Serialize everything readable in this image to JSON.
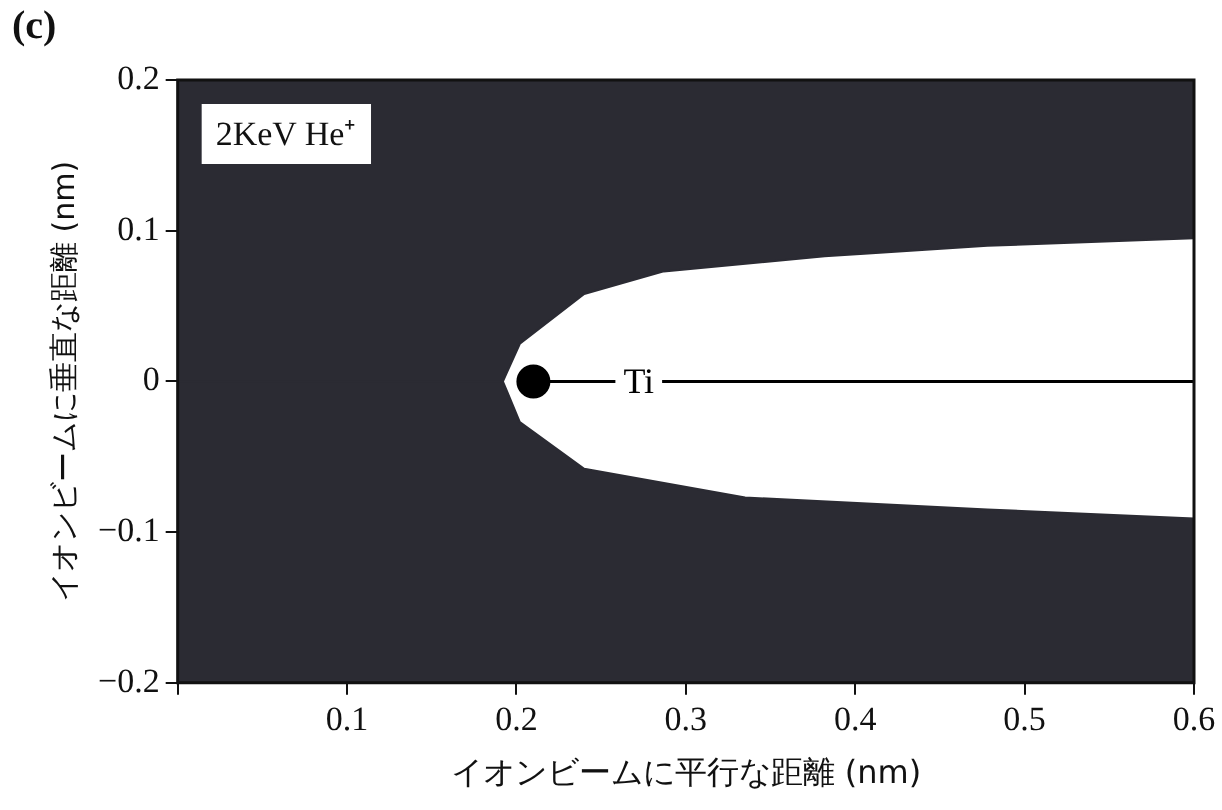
{
  "chart_data": {
    "type": "area",
    "xlabel": "イオンビームに平行な距離 (nm)",
    "ylabel": "イオンビームに垂直な距離 (nm)",
    "annotations": [
      "(c)",
      "2KeV He⁺"
    ],
    "xlim": [
      0,
      0.6
    ],
    "xticks": [
      {
        "value": 0,
        "label": null
      },
      0.1,
      0.2,
      0.3,
      0.4,
      0.5,
      0.6
    ],
    "ylim": [
      -0.2,
      0.2
    ],
    "yticks": [
      {
        "value": -0.2,
        "label": "−0.2"
      },
      {
        "value": -0.1,
        "label": "−0.1"
      },
      0,
      0.1,
      0.2
    ],
    "series": [
      {
        "type": "area",
        "color": "#2b2b33",
        "x": [
          0,
          0,
          0.192,
          0.202,
          0.24,
          0.287,
          0.382,
          0.478,
          0.6,
          0.6
        ],
        "values": [
          0.2,
          0,
          0,
          0.025,
          0.058,
          0.073,
          0.083,
          0.09,
          0.095,
          0.2
        ]
      },
      {
        "type": "area",
        "color": "#2b2b33",
        "x": [
          0,
          0,
          0.192,
          0.202,
          0.24,
          0.335,
          0.478,
          0.6,
          0.6
        ],
        "values": [
          -0.2,
          0,
          0,
          -0.027,
          -0.058,
          -0.077,
          -0.085,
          -0.091,
          -0.2
        ]
      },
      {
        "type": "line",
        "name": "Ti",
        "color": "#000000",
        "x": [
          0.21,
          0.6
        ],
        "values": [
          0,
          0
        ]
      },
      {
        "type": "scatter",
        "color": "#000000",
        "marker": "circle",
        "x": [
          0.21
        ],
        "values": [
          0
        ]
      }
    ]
  }
}
